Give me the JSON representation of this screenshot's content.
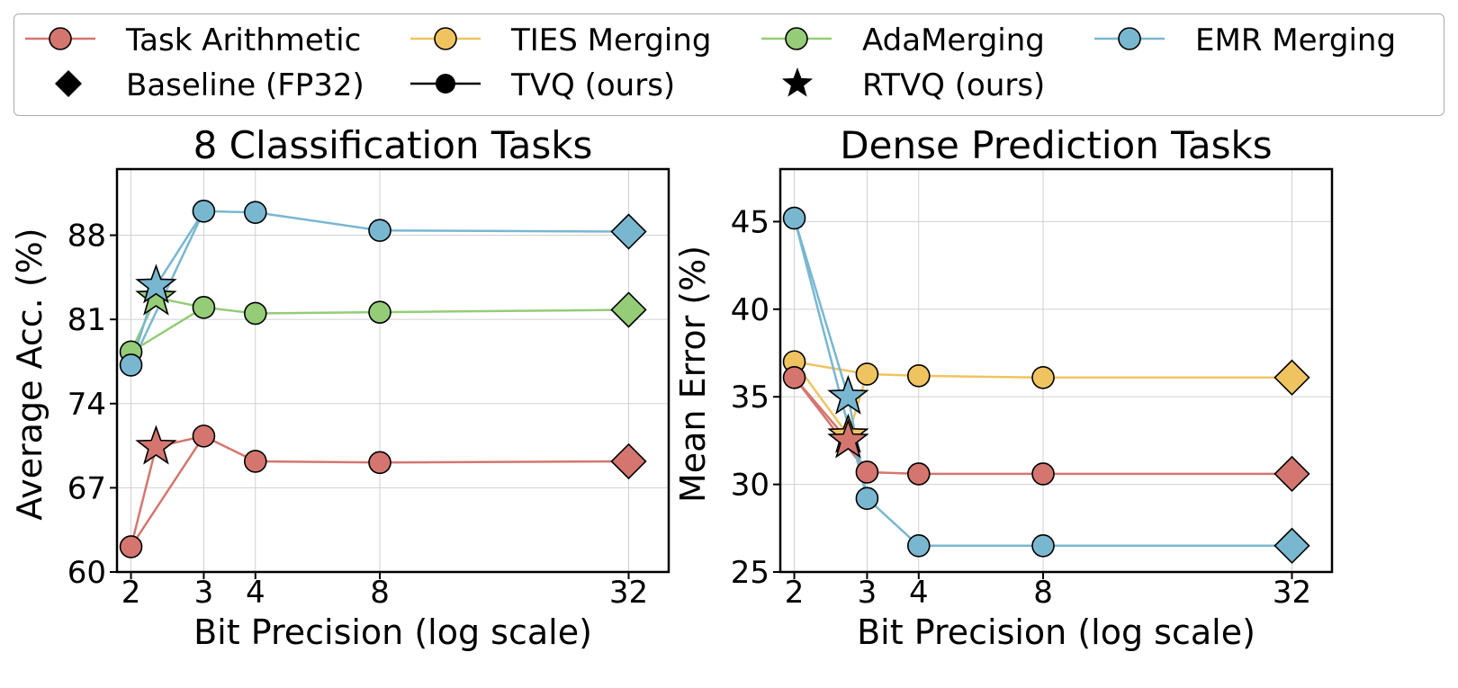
{
  "legend": {
    "items": [
      {
        "label": "Task Arithmetic",
        "kind": "line-circle",
        "color": "#d4766f"
      },
      {
        "label": "TIES Merging",
        "kind": "line-circle",
        "color": "#efc460"
      },
      {
        "label": "AdaMerging",
        "kind": "line-circle",
        "color": "#94cc78"
      },
      {
        "label": "EMR Merging",
        "kind": "line-circle",
        "color": "#79b7d0"
      },
      {
        "label": "Baseline (FP32)",
        "kind": "diamond",
        "color": "#000000"
      },
      {
        "label": "TVQ (ours)",
        "kind": "line-dot",
        "color": "#000000"
      },
      {
        "label": "RTVQ (ours)",
        "kind": "star",
        "color": "#000000"
      }
    ]
  },
  "chart_data": [
    {
      "type": "line",
      "title": "8 Classification Tasks",
      "xlabel": "Bit Precision (log scale)",
      "ylabel": "Average Acc. (%)",
      "xscale": "log",
      "xlim": [
        1.85,
        40
      ],
      "ylim": [
        60,
        93.5
      ],
      "xticks": [
        2,
        3,
        4,
        8,
        32
      ],
      "yticks": [
        60,
        67,
        74,
        81,
        88
      ],
      "series": [
        {
          "name": "Task Arithmetic",
          "color": "#d4766f",
          "x": [
            2,
            3,
            4,
            8
          ],
          "y": [
            62.1,
            71.3,
            69.2,
            69.1
          ],
          "baseline": {
            "x": 32,
            "y": 69.2
          },
          "rtvq": {
            "x": 2.3,
            "y": 70.4
          }
        },
        {
          "name": "AdaMerging",
          "color": "#94cc78",
          "x": [
            2,
            3,
            4,
            8
          ],
          "y": [
            78.3,
            82.0,
            81.5,
            81.6
          ],
          "baseline": {
            "x": 32,
            "y": 81.8
          },
          "rtvq": {
            "x": 2.3,
            "y": 82.8
          }
        },
        {
          "name": "EMR Merging",
          "color": "#79b7d0",
          "x": [
            2,
            3,
            4,
            8
          ],
          "y": [
            77.2,
            90.0,
            89.9,
            88.4
          ],
          "baseline": {
            "x": 32,
            "y": 88.3
          },
          "rtvq": {
            "x": 2.3,
            "y": 83.8
          }
        }
      ]
    },
    {
      "type": "line",
      "title": "Dense Prediction Tasks",
      "xlabel": "Bit Precision (log scale)",
      "ylabel": "Mean Error (%)",
      "xscale": "log",
      "xlim": [
        1.85,
        40
      ],
      "ylim": [
        25,
        48
      ],
      "xticks": [
        2,
        3,
        4,
        8,
        32
      ],
      "yticks": [
        25,
        30,
        35,
        40,
        45
      ],
      "series": [
        {
          "name": "TIES Merging",
          "color": "#efc460",
          "x": [
            2,
            3,
            4,
            8
          ],
          "y": [
            37.0,
            36.3,
            36.2,
            36.1
          ],
          "baseline": {
            "x": 32,
            "y": 36.1
          },
          "rtvq": {
            "x": 2.7,
            "y": 32.8
          }
        },
        {
          "name": "Task Arithmetic",
          "color": "#d4766f",
          "x": [
            2,
            3,
            4,
            8
          ],
          "y": [
            36.1,
            30.7,
            30.6,
            30.6
          ],
          "baseline": {
            "x": 32,
            "y": 30.6
          },
          "rtvq": {
            "x": 2.7,
            "y": 32.5
          }
        },
        {
          "name": "EMR Merging",
          "color": "#79b7d0",
          "x": [
            2,
            3,
            4,
            8
          ],
          "y": [
            45.2,
            29.2,
            26.5,
            26.5
          ],
          "baseline": {
            "x": 32,
            "y": 26.5
          },
          "rtvq": {
            "x": 2.7,
            "y": 35.0
          }
        }
      ]
    }
  ]
}
